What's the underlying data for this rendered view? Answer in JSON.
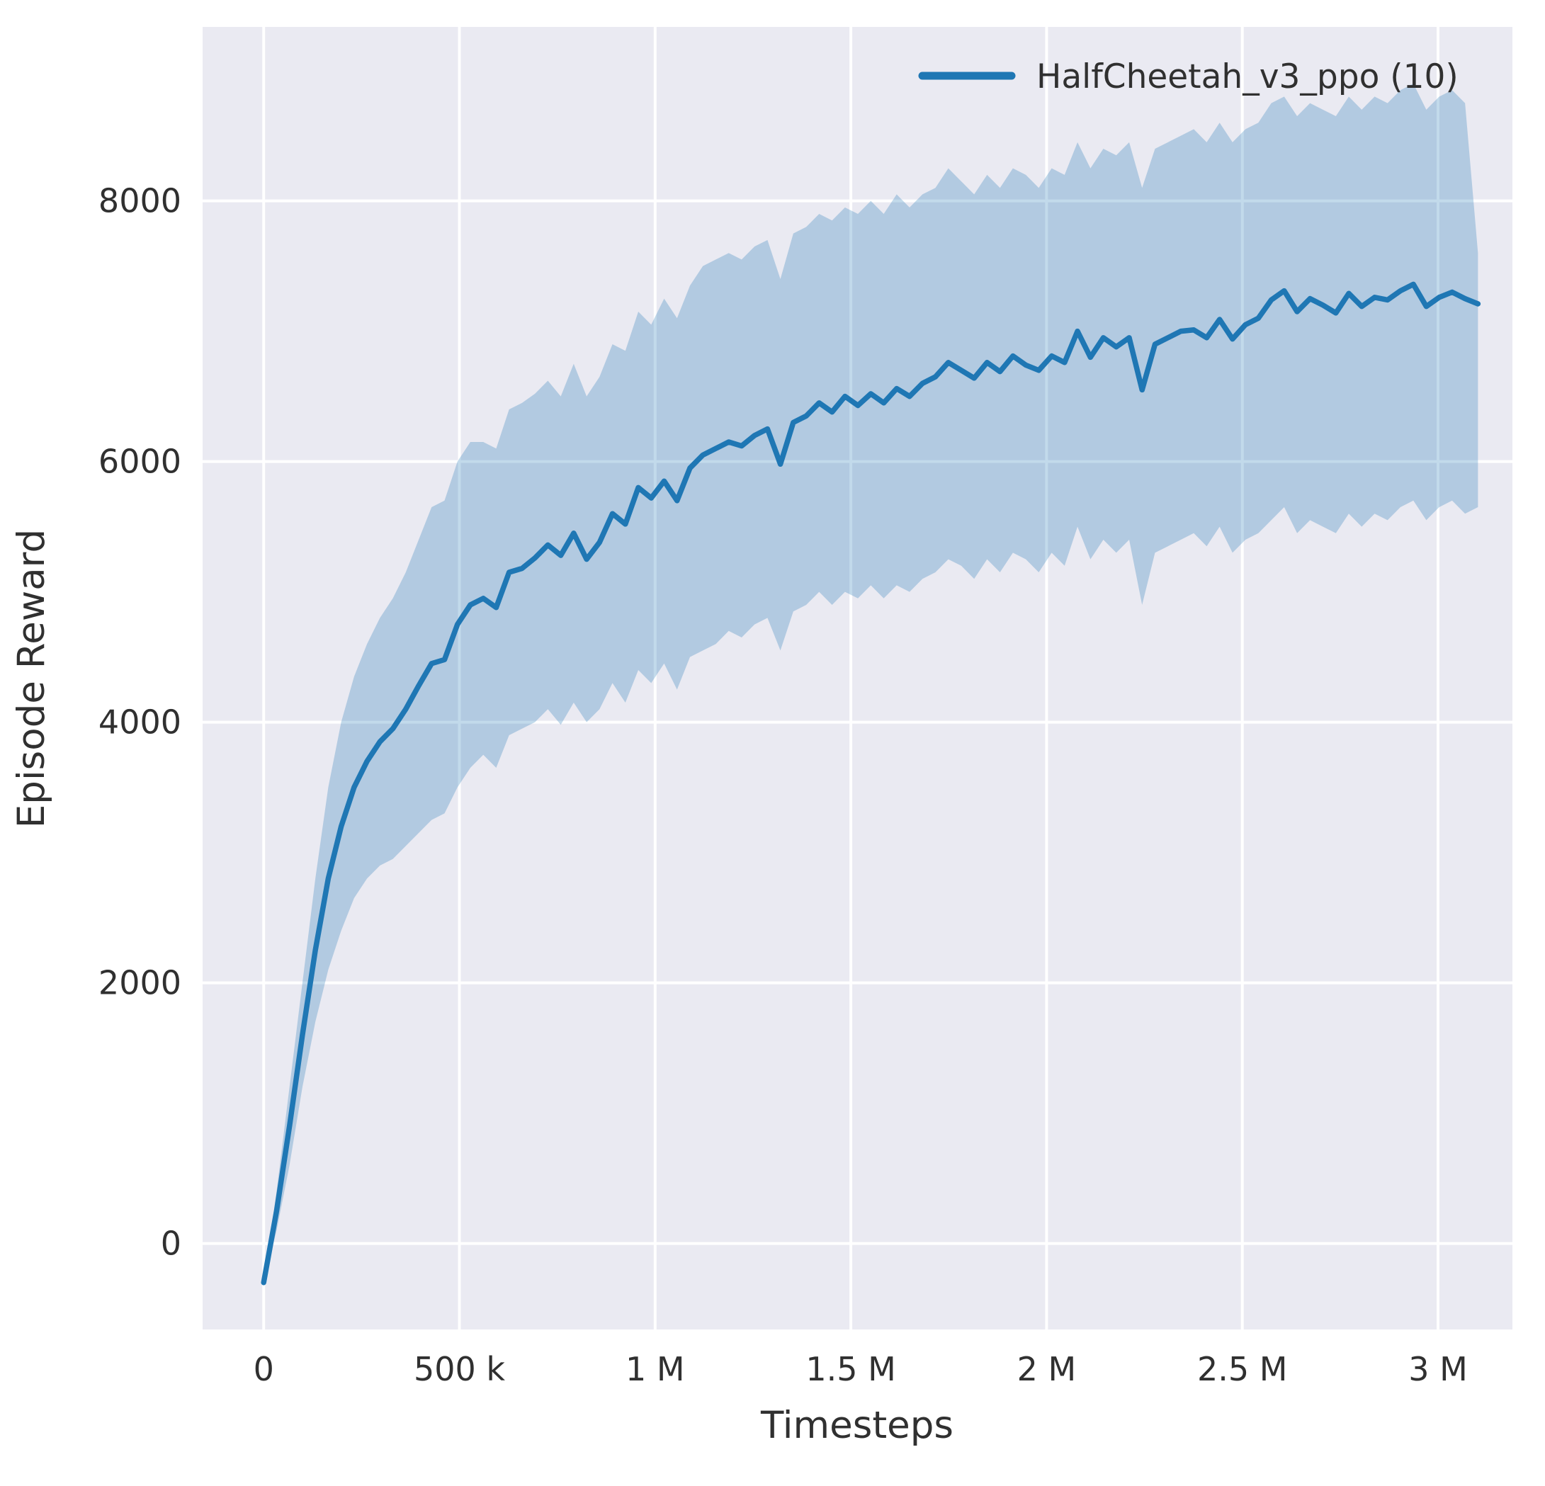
{
  "figure": {
    "background": "#ffffff",
    "plot_background": "#eaeaf2",
    "grid_color": "#ffffff",
    "text_color": "#303030"
  },
  "legend": {
    "label": "HalfCheetah_v3_ppo (10)",
    "line_color": "#1f77b4",
    "position": "upper right"
  },
  "chart_data": {
    "type": "line",
    "title": "",
    "xlabel": "Timesteps",
    "ylabel": "Episode Reward",
    "grid": true,
    "legend_position": "upper right",
    "xlim": [
      -156000,
      3190000
    ],
    "ylim": [
      -660,
      9335
    ],
    "band_opacity": 0.27,
    "x_ticks": {
      "values": [
        0,
        500000,
        1000000,
        1500000,
        2000000,
        2500000,
        3000000
      ],
      "labels": [
        "0",
        "500 k",
        "1 M",
        "1.5 M",
        "2 M",
        "2.5 M",
        "3 M"
      ]
    },
    "y_ticks": {
      "values": [
        0,
        2000,
        4000,
        6000,
        8000
      ],
      "labels": [
        "0",
        "2000",
        "4000",
        "6000",
        "8000"
      ]
    },
    "series": [
      {
        "name": "HalfCheetah_v3_ppo (10)",
        "color": "#1f77b4",
        "x": [
          0,
          33000,
          66000,
          99000,
          132000,
          165000,
          198000,
          231000,
          264000,
          297000,
          330000,
          363000,
          396000,
          429000,
          462000,
          495000,
          528000,
          561000,
          594000,
          627000,
          660000,
          693000,
          726000,
          759000,
          792000,
          825000,
          858000,
          891000,
          924000,
          957000,
          990000,
          1023000,
          1056000,
          1089000,
          1122000,
          1155000,
          1188000,
          1221000,
          1254000,
          1287000,
          1320000,
          1353000,
          1386000,
          1419000,
          1452000,
          1485000,
          1518000,
          1551000,
          1584000,
          1617000,
          1650000,
          1683000,
          1716000,
          1749000,
          1782000,
          1815000,
          1848000,
          1881000,
          1914000,
          1947000,
          1980000,
          2013000,
          2046000,
          2079000,
          2112000,
          2145000,
          2178000,
          2211000,
          2244000,
          2277000,
          2310000,
          2343000,
          2376000,
          2409000,
          2442000,
          2475000,
          2508000,
          2541000,
          2574000,
          2607000,
          2640000,
          2673000,
          2706000,
          2739000,
          2772000,
          2805000,
          2838000,
          2871000,
          2904000,
          2937000,
          2970000,
          3003000,
          3036000,
          3069000,
          3102000
        ],
        "mean": [
          -300,
          250,
          900,
          1600,
          2250,
          2800,
          3200,
          3500,
          3700,
          3850,
          3950,
          4100,
          4280,
          4450,
          4480,
          4750,
          4900,
          4950,
          4880,
          5150,
          5180,
          5260,
          5360,
          5280,
          5450,
          5250,
          5380,
          5600,
          5520,
          5800,
          5720,
          5850,
          5700,
          5950,
          6050,
          6100,
          6150,
          6120,
          6200,
          6250,
          5980,
          6300,
          6350,
          6450,
          6380,
          6500,
          6430,
          6520,
          6450,
          6560,
          6500,
          6600,
          6650,
          6760,
          6700,
          6640,
          6760,
          6690,
          6810,
          6740,
          6700,
          6810,
          6760,
          7000,
          6800,
          6950,
          6880,
          6950,
          6550,
          6900,
          6950,
          7000,
          7010,
          6950,
          7090,
          6940,
          7050,
          7100,
          7240,
          7310,
          7150,
          7250,
          7200,
          7140,
          7290,
          7190,
          7260,
          7240,
          7310,
          7360,
          7190,
          7260,
          7300,
          7250,
          7210
        ],
        "lower": [
          -300,
          100,
          600,
          1200,
          1700,
          2100,
          2400,
          2650,
          2800,
          2900,
          2950,
          3050,
          3150,
          3250,
          3300,
          3500,
          3650,
          3750,
          3650,
          3900,
          3950,
          4000,
          4100,
          3980,
          4150,
          4000,
          4100,
          4300,
          4150,
          4400,
          4300,
          4450,
          4250,
          4500,
          4550,
          4600,
          4700,
          4650,
          4750,
          4800,
          4550,
          4850,
          4900,
          5000,
          4900,
          5000,
          4950,
          5050,
          4950,
          5050,
          5000,
          5100,
          5150,
          5250,
          5200,
          5100,
          5250,
          5150,
          5300,
          5250,
          5150,
          5300,
          5200,
          5500,
          5250,
          5400,
          5300,
          5400,
          4900,
          5300,
          5350,
          5400,
          5450,
          5350,
          5500,
          5300,
          5400,
          5450,
          5550,
          5650,
          5450,
          5550,
          5500,
          5450,
          5600,
          5500,
          5600,
          5550,
          5650,
          5700,
          5550,
          5650,
          5700,
          5600,
          5650
        ],
        "upper": [
          -300,
          400,
          1200,
          2000,
          2800,
          3500,
          4000,
          4350,
          4600,
          4800,
          4950,
          5150,
          5400,
          5650,
          5700,
          6000,
          6150,
          6150,
          6100,
          6400,
          6450,
          6520,
          6620,
          6500,
          6750,
          6500,
          6650,
          6900,
          6850,
          7150,
          7050,
          7250,
          7100,
          7350,
          7500,
          7550,
          7600,
          7550,
          7650,
          7700,
          7400,
          7750,
          7800,
          7900,
          7850,
          7950,
          7900,
          8000,
          7900,
          8050,
          7950,
          8050,
          8100,
          8250,
          8150,
          8050,
          8200,
          8100,
          8250,
          8200,
          8100,
          8250,
          8200,
          8450,
          8250,
          8400,
          8350,
          8450,
          8100,
          8400,
          8450,
          8500,
          8550,
          8450,
          8600,
          8450,
          8550,
          8600,
          8750,
          8800,
          8650,
          8750,
          8700,
          8650,
          8800,
          8700,
          8800,
          8750,
          8850,
          8900,
          8700,
          8800,
          8850,
          8750,
          7600
        ]
      }
    ]
  }
}
